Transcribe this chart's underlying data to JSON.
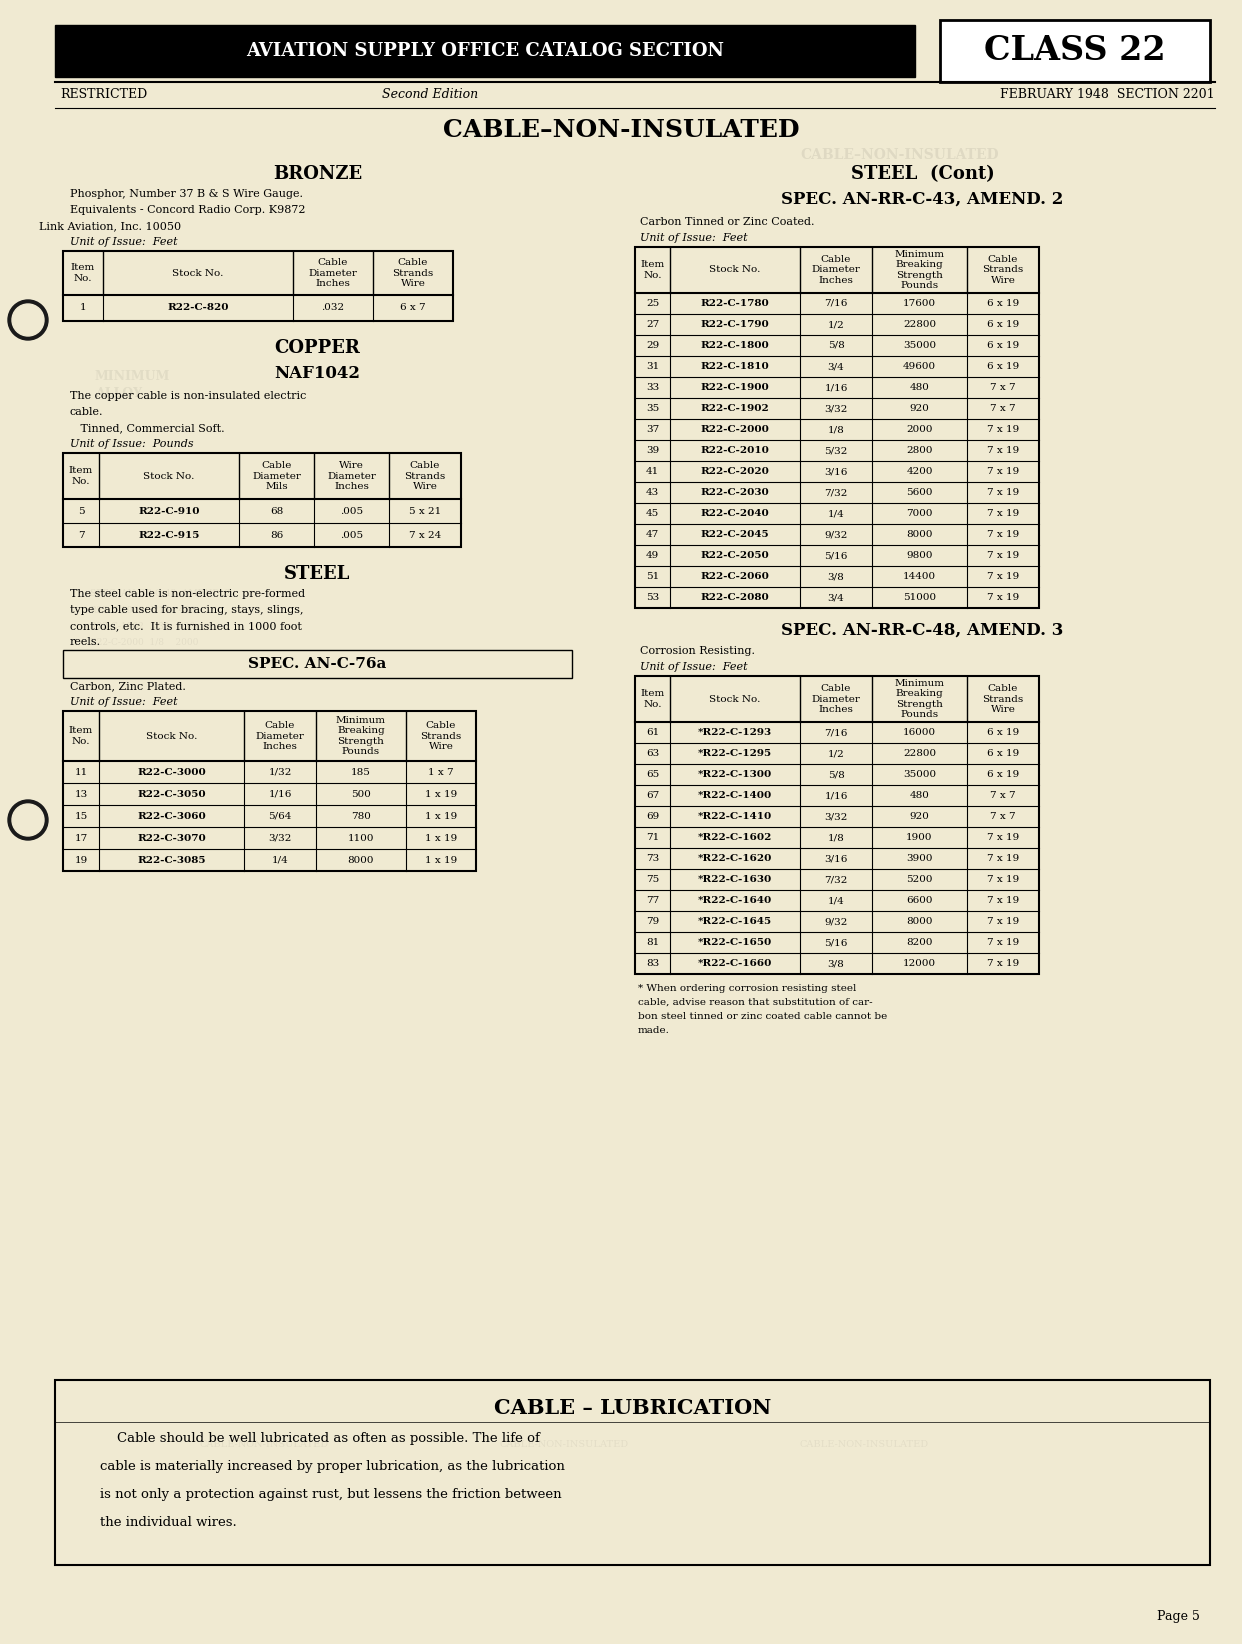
{
  "bg_color": "#f0ead2",
  "page_title": "CABLE–NON-INSULATED",
  "header_bar_text": "AVIATION SUPPLY OFFICE CATALOG SECTION",
  "header_class": "CLASS 22",
  "header_restricted": "RESTRICTED",
  "header_edition": "Second Edition",
  "header_date": "FEBRUARY 1948  SECTION 2201",
  "bronze_title": "BRONZE",
  "bronze_desc1": "Phosphor, Number 37 B & S Wire Gauge.",
  "bronze_desc2": "Equivalents - Concord Radio Corp. K9872",
  "bronze_desc3": "Link Aviation, Inc. 10050",
  "bronze_unit": "Unit of Issue:  Feet",
  "bronze_headers": [
    "Item\nNo.",
    "Stock No.",
    "Cable\nDiameter\nInches",
    "Cable\nStrands\nWire"
  ],
  "bronze_data": [
    [
      "1",
      "R22-C-820",
      ".032",
      "6 x 7"
    ]
  ],
  "copper_title": "COPPER",
  "copper_subtitle": "NAF1042",
  "copper_desc1": "The copper cable is non-insulated electric",
  "copper_desc2": "cable.",
  "copper_desc3": "   Tinned, Commercial Soft.",
  "copper_unit": "Unit of Issue:  Pounds",
  "copper_headers": [
    "Item\nNo.",
    "Stock No.",
    "Cable\nDiameter\nMils",
    "Wire\nDiameter\nInches",
    "Cable\nStrands\nWire"
  ],
  "copper_data": [
    [
      "5",
      "R22-C-910",
      "68",
      ".005",
      "5 x 21"
    ],
    [
      "7",
      "R22-C-915",
      "86",
      ".005",
      "7 x 24"
    ]
  ],
  "steel_title": "STEEL",
  "steel_desc1": "The steel cable is non-electric pre-formed",
  "steel_desc2": "type cable used for bracing, stays, slings,",
  "steel_desc3": "controls, etc.  It is furnished in 1000 foot",
  "steel_desc4": "reels.",
  "steel_spec1_title": "SPEC. AN-C-76a",
  "steel_spec1_desc": "Carbon, Zinc Plated.",
  "steel_spec1_unit": "Unit of Issue:  Feet",
  "steel_spec1_headers": [
    "Item\nNo.",
    "Stock No.",
    "Cable\nDiameter\nInches",
    "Minimum\nBreaking\nStrength\nPounds",
    "Cable\nStrands\nWire"
  ],
  "steel_spec1_data": [
    [
      "11",
      "R22-C-3000",
      "1/32",
      "185",
      "1 x 7"
    ],
    [
      "13",
      "R22-C-3050",
      "1/16",
      "500",
      "1 x 19"
    ],
    [
      "15",
      "R22-C-3060",
      "5/64",
      "780",
      "1 x 19"
    ],
    [
      "17",
      "R22-C-3070",
      "3/32",
      "1100",
      "1 x 19"
    ],
    [
      "19",
      "R22-C-3085",
      "1/4",
      "8000",
      "1 x 19"
    ]
  ],
  "steel_cont_title": "STEEL  (Cont)",
  "steel_spec2_title": "SPEC. AN-RR-C-43, AMEND. 2",
  "steel_spec2_desc1": "Carbon Tinned or Zinc Coated.",
  "steel_spec2_unit": "Unit of Issue:  Feet",
  "steel_spec2_headers": [
    "Item\nNo.",
    "Stock No.",
    "Cable\nDiameter\nInches",
    "Minimum\nBreaking\nStrength\nPounds",
    "Cable\nStrands\nWire"
  ],
  "steel_spec2_data": [
    [
      "25",
      "R22-C-1780",
      "7/16",
      "17600",
      "6 x 19"
    ],
    [
      "27",
      "R22-C-1790",
      "1/2",
      "22800",
      "6 x 19"
    ],
    [
      "29",
      "R22-C-1800",
      "5/8",
      "35000",
      "6 x 19"
    ],
    [
      "31",
      "R22-C-1810",
      "3/4",
      "49600",
      "6 x 19"
    ],
    [
      "33",
      "R22-C-1900",
      "1/16",
      "480",
      "7 x 7"
    ],
    [
      "35",
      "R22-C-1902",
      "3/32",
      "920",
      "7 x 7"
    ],
    [
      "37",
      "R22-C-2000",
      "1/8",
      "2000",
      "7 x 19"
    ],
    [
      "39",
      "R22-C-2010",
      "5/32",
      "2800",
      "7 x 19"
    ],
    [
      "41",
      "R22-C-2020",
      "3/16",
      "4200",
      "7 x 19"
    ],
    [
      "43",
      "R22-C-2030",
      "7/32",
      "5600",
      "7 x 19"
    ],
    [
      "45",
      "R22-C-2040",
      "1/4",
      "7000",
      "7 x 19"
    ],
    [
      "47",
      "R22-C-2045",
      "9/32",
      "8000",
      "7 x 19"
    ],
    [
      "49",
      "R22-C-2050",
      "5/16",
      "9800",
      "7 x 19"
    ],
    [
      "51",
      "R22-C-2060",
      "3/8",
      "14400",
      "7 x 19"
    ],
    [
      "53",
      "R22-C-2080",
      "3/4",
      "51000",
      "7 x 19"
    ]
  ],
  "steel_spec3_title": "SPEC. AN-RR-C-48, AMEND. 3",
  "steel_spec3_desc1": "Corrosion Resisting.",
  "steel_spec3_unit": "Unit of Issue:  Feet",
  "steel_spec3_headers": [
    "Item\nNo.",
    "Stock No.",
    "Cable\nDiameter\nInches",
    "Minimum\nBreaking\nStrength\nPounds",
    "Cable\nStrands\nWire"
  ],
  "steel_spec3_data": [
    [
      "61",
      "*R22-C-1293",
      "7/16",
      "16000",
      "6 x 19"
    ],
    [
      "63",
      "*R22-C-1295",
      "1/2",
      "22800",
      "6 x 19"
    ],
    [
      "65",
      "*R22-C-1300",
      "5/8",
      "35000",
      "6 x 19"
    ],
    [
      "67",
      "*R22-C-1400",
      "1/16",
      "480",
      "7 x 7"
    ],
    [
      "69",
      "*R22-C-1410",
      "3/32",
      "920",
      "7 x 7"
    ],
    [
      "71",
      "*R22-C-1602",
      "1/8",
      "1900",
      "7 x 19"
    ],
    [
      "73",
      "*R22-C-1620",
      "3/16",
      "3900",
      "7 x 19"
    ],
    [
      "75",
      "*R22-C-1630",
      "7/32",
      "5200",
      "7 x 19"
    ],
    [
      "77",
      "*R22-C-1640",
      "1/4",
      "6600",
      "7 x 19"
    ],
    [
      "79",
      "*R22-C-1645",
      "9/32",
      "8000",
      "7 x 19"
    ],
    [
      "81",
      "*R22-C-1650",
      "5/16",
      "8200",
      "7 x 19"
    ],
    [
      "83",
      "*R22-C-1660",
      "3/8",
      "12000",
      "7 x 19"
    ]
  ],
  "footnote_line1": "* When ordering corrosion resisting steel",
  "footnote_line2": "cable, advise reason that substitution of car-",
  "footnote_line3": "bon steel tinned or zinc coated cable cannot be",
  "footnote_line4": "made.",
  "lubrication_title": "CABLE – LUBRICATION",
  "lubrication_lines": [
    "    Cable should be well lubricated as often as possible. The life of",
    "cable is materially increased by proper lubrication, as the lubrication",
    "is not only a protection against rust, but lessens the friction between",
    "the individual wires."
  ],
  "page_num": "Page 5",
  "watermark_text": "CABLE–NON-INSULATED"
}
